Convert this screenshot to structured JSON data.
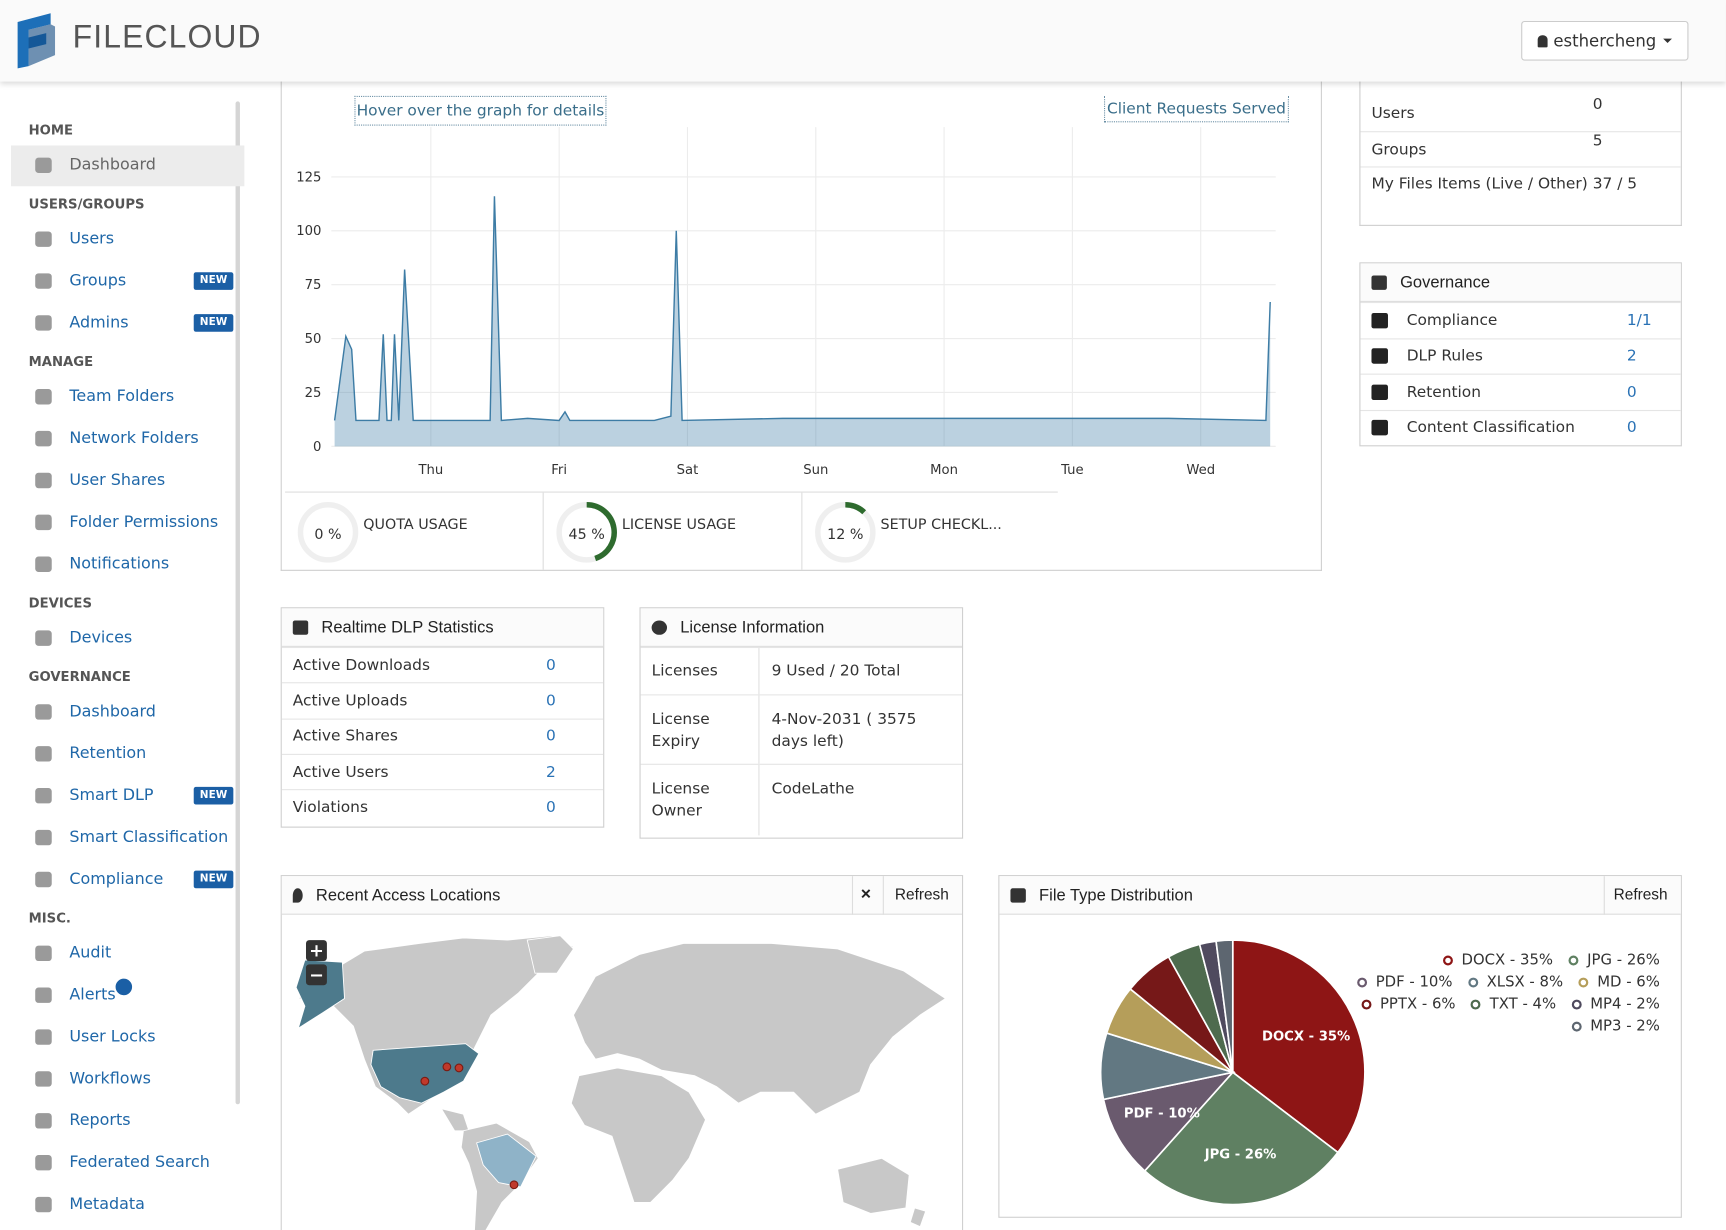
{
  "header": {
    "brand": "FILECLOUD",
    "user": "esthercheng"
  },
  "sidebar": [
    {
      "heading": "HOME",
      "items": [
        {
          "label": "Dashboard",
          "active": true
        }
      ]
    },
    {
      "heading": "USERS/GROUPS",
      "items": [
        {
          "label": "Users"
        },
        {
          "label": "Groups",
          "badge": "NEW"
        },
        {
          "label": "Admins",
          "badge": "NEW"
        }
      ]
    },
    {
      "heading": "MANAGE",
      "items": [
        {
          "label": "Team Folders"
        },
        {
          "label": "Network Folders"
        },
        {
          "label": "User Shares"
        },
        {
          "label": "Folder Permissions"
        },
        {
          "label": "Notifications"
        }
      ]
    },
    {
      "heading": "DEVICES",
      "items": [
        {
          "label": "Devices"
        }
      ]
    },
    {
      "heading": "GOVERNANCE",
      "items": [
        {
          "label": "Dashboard"
        },
        {
          "label": "Retention"
        },
        {
          "label": "Smart DLP",
          "badge": "NEW"
        },
        {
          "label": "Smart Classification"
        },
        {
          "label": "Compliance",
          "badge": "NEW"
        }
      ]
    },
    {
      "heading": "MISC.",
      "items": [
        {
          "label": "Audit"
        },
        {
          "label": "Alerts"
        },
        {
          "label": "User Locks"
        },
        {
          "label": "Workflows"
        },
        {
          "label": "Reports"
        },
        {
          "label": "Federated Search"
        },
        {
          "label": "Metadata"
        }
      ]
    }
  ],
  "chart_data": [
    {
      "type": "line",
      "hint": "Hover over the graph for details",
      "x": [
        -18,
        -15.9,
        -14.8,
        -14,
        -9.7,
        -8.9,
        -8.2,
        -7.4,
        -6.8,
        -6,
        -4.9,
        -3.3,
        11.1,
        11.9,
        13.2,
        18.1,
        24,
        25.1,
        26,
        41.8,
        44.9,
        45.9,
        47,
        65.9,
        89.8,
        138,
        156.2,
        157
      ],
      "series": [
        {
          "name": "Client Requests Served",
          "color": "#3d7ca5",
          "values": [
            12,
            51,
            45,
            12,
            12,
            52,
            12,
            12,
            52,
            12,
            82,
            12,
            12,
            116,
            12,
            13,
            12,
            16,
            12,
            12,
            14,
            100,
            12,
            13,
            13,
            13,
            12,
            67
          ]
        }
      ],
      "xlim": [
        -18,
        157
      ],
      "xticks": [
        {
          "value": 0,
          "label": "Thu"
        },
        {
          "value": 24,
          "label": "Fri"
        },
        {
          "value": 48,
          "label": "Sat"
        },
        {
          "value": 72,
          "label": "Sun"
        },
        {
          "value": 96,
          "label": "Mon"
        },
        {
          "value": 120,
          "label": "Tue"
        },
        {
          "value": 144,
          "label": "Wed"
        }
      ],
      "ylim": [
        0,
        143
      ],
      "yticks": [
        0,
        25,
        50,
        75,
        100,
        125
      ],
      "grid": true
    },
    {
      "type": "pie",
      "title": "File Type Distribution",
      "categories": [
        "DOCX",
        "JPG",
        "PDF",
        "XLSX",
        "MD",
        "PPTX",
        "TXT",
        "MP4",
        "MP3"
      ],
      "values": [
        35,
        26,
        10,
        8,
        6,
        6,
        4,
        2,
        2
      ],
      "value_labels": [
        "DOCX - 35%",
        "JPG - 26%",
        "PDF - 10%",
        "XLSX - 8%",
        "MD - 6%",
        "PPTX - 6%",
        "TXT - 4%",
        "MP4 - 2%",
        "MP3 - 2%"
      ],
      "colors": [
        "#8e1515",
        "#5f8062",
        "#6a5a6e",
        "#627882",
        "#b59e5a",
        "#761818",
        "#4e6b4e",
        "#4f4a5e",
        "#5d6670"
      ]
    }
  ],
  "gauges": [
    {
      "value": 0,
      "label": "0 %",
      "title": "QUOTA USAGE"
    },
    {
      "value": 45,
      "label": "45 %",
      "title": "LICENSE USAGE"
    },
    {
      "value": 12,
      "label": "12 %",
      "title": "SETUP CHECKL..."
    }
  ],
  "stats": [
    {
      "label": "Users",
      "value": "0"
    },
    {
      "label": "Groups",
      "value": "5"
    },
    {
      "label": "My Files Items (Live / Other)",
      "value": "37 / 5"
    }
  ],
  "governance": {
    "title": "Governance",
    "rows": [
      {
        "label": "Compliance",
        "value": "1/1"
      },
      {
        "label": "DLP Rules",
        "value": "2"
      },
      {
        "label": "Retention",
        "value": "0"
      },
      {
        "label": "Content Classification",
        "value": "0"
      }
    ]
  },
  "dlp": {
    "title": "Realtime DLP Statistics",
    "rows": [
      {
        "label": "Active Downloads",
        "value": "0"
      },
      {
        "label": "Active Uploads",
        "value": "0"
      },
      {
        "label": "Active Shares",
        "value": "0"
      },
      {
        "label": "Active Users",
        "value": "2"
      },
      {
        "label": "Violations",
        "value": "0"
      }
    ]
  },
  "license": {
    "title": "License Information",
    "rows": [
      {
        "label": "Licenses",
        "value": "9 Used / 20 Total"
      },
      {
        "label": "License Expiry",
        "value": "4-Nov-2031 ( 3575 days left)"
      },
      {
        "label": "License Owner",
        "value": "CodeLathe"
      }
    ]
  },
  "locations": {
    "title": "Recent Access Locations",
    "close": "×",
    "refresh": "Refresh",
    "zoom_in": "+",
    "zoom_out": "−"
  },
  "file_types": {
    "refresh": "Refresh"
  }
}
